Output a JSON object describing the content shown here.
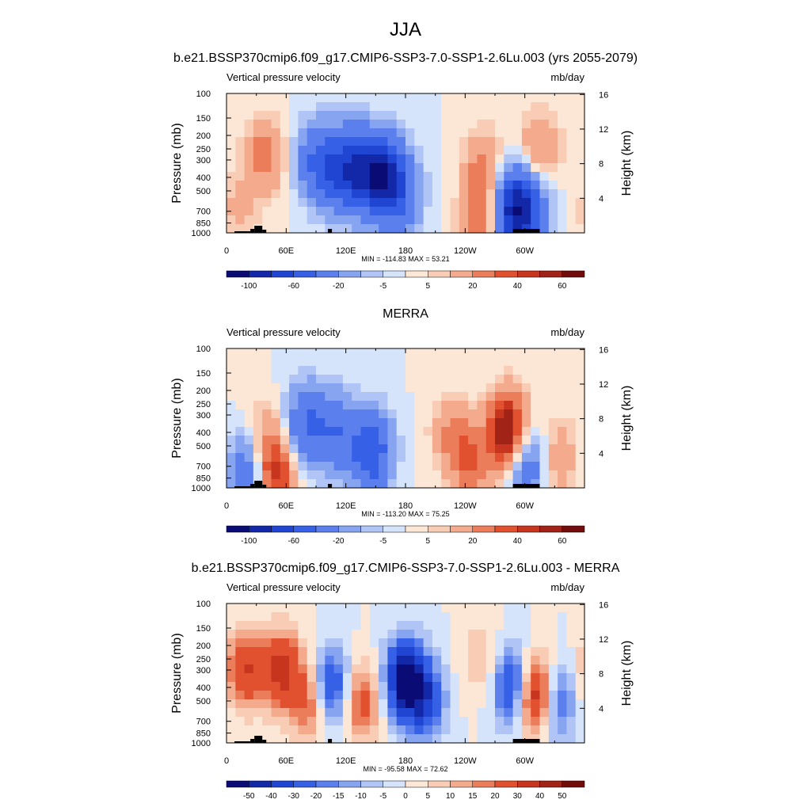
{
  "figure": {
    "title": "JJA"
  },
  "colors": {
    "colorbar_1": [
      "#0b0b75",
      "#1228a8",
      "#1f45d2",
      "#3660e6",
      "#5b80ee",
      "#87a4f1",
      "#b0c4f5",
      "#d5e4fb",
      "#fce6d6",
      "#f9cdb5",
      "#f4aa8c",
      "#ec7d5a",
      "#e2512f",
      "#c8351f",
      "#a12216",
      "#720c0b"
    ],
    "colorbar_3": [
      "#0b0b75",
      "#1228a8",
      "#1f45d2",
      "#3660e6",
      "#5b80ee",
      "#87a4f1",
      "#b0c4f5",
      "#d5e4fb",
      "#fce6d6",
      "#f9cdb5",
      "#f4aa8c",
      "#ec7d5a",
      "#e2512f",
      "#c8351f",
      "#a12216",
      "#720c0b"
    ],
    "topography": "#000000"
  },
  "chart_data": [
    {
      "type": "heatmap",
      "title": "b.e21.BSSP370cmip6.f09_g17.CMIP6-SSP3-7.0-SSP1-2.6Lu.003 (yrs 2055-2079)",
      "left_label": "Vertical pressure velocity",
      "right_label": "mb/day",
      "ylabel": "Pressure (mb)",
      "ylabel_right": "Height (km)",
      "x_ticks": [
        "0",
        "60E",
        "120E",
        "180",
        "120W",
        "60W"
      ],
      "y_ticks": [
        "100",
        "150",
        "200",
        "250",
        "300",
        "400",
        "500",
        "700",
        "850",
        "1000"
      ],
      "y_right_ticks": [
        "16",
        "12",
        "8",
        "4"
      ],
      "min_max": "MIN = -114.83  MAX =  53.21",
      "colorbar_labels": [
        "-100",
        "-60",
        "-20",
        "-5",
        "5",
        "20",
        "40",
        "60"
      ],
      "features": [
        {
          "lon": 38,
          "p": 280,
          "value": 26
        },
        {
          "lon": 12,
          "p": 700,
          "value": 12
        },
        {
          "lon": 88,
          "p": 300,
          "value": -25
        },
        {
          "lon": 105,
          "p": 350,
          "value": -45
        },
        {
          "lon": 130,
          "p": 350,
          "value": -65
        },
        {
          "lon": 155,
          "p": 400,
          "value": -85
        },
        {
          "lon": 175,
          "p": 500,
          "value": -40
        },
        {
          "lon": 258,
          "p": 350,
          "value": 24
        },
        {
          "lon": 256,
          "p": 850,
          "value": 30
        },
        {
          "lon": 288,
          "p": 700,
          "value": -80
        },
        {
          "lon": 315,
          "p": 250,
          "value": 22
        },
        {
          "lon": 305,
          "p": 700,
          "value": -40
        }
      ]
    },
    {
      "type": "heatmap",
      "title": "MERRA",
      "left_label": "Vertical pressure velocity",
      "right_label": "mb/day",
      "ylabel": "Pressure (mb)",
      "ylabel_right": "Height (km)",
      "x_ticks": [
        "0",
        "60E",
        "120E",
        "180",
        "120W",
        "60W"
      ],
      "y_ticks": [
        "100",
        "150",
        "200",
        "250",
        "300",
        "400",
        "500",
        "700",
        "850",
        "1000"
      ],
      "y_right_ticks": [
        "16",
        "12",
        "8",
        "4"
      ],
      "min_max": "MIN = -113.20  MAX =  75.25",
      "colorbar_labels": [
        "-100",
        "-60",
        "-20",
        "-5",
        "5",
        "20",
        "40",
        "60"
      ],
      "features": [
        {
          "lon": 35,
          "p": 500,
          "value": 25
        },
        {
          "lon": 48,
          "p": 800,
          "value": 45
        },
        {
          "lon": 25,
          "p": 700,
          "value": -45
        },
        {
          "lon": 80,
          "p": 350,
          "value": -40
        },
        {
          "lon": 110,
          "p": 400,
          "value": -35
        },
        {
          "lon": 145,
          "p": 550,
          "value": -60
        },
        {
          "lon": 225,
          "p": 400,
          "value": 18
        },
        {
          "lon": 245,
          "p": 650,
          "value": 30
        },
        {
          "lon": 283,
          "p": 400,
          "value": 70
        },
        {
          "lon": 300,
          "p": 650,
          "value": -40
        },
        {
          "lon": 335,
          "p": 600,
          "value": 18
        }
      ]
    },
    {
      "type": "heatmap",
      "title": "b.e21.BSSP370cmip6.f09_g17.CMIP6-SSP3-7.0-SSP1-2.6Lu.003 - MERRA",
      "left_label": "Vertical pressure velocity",
      "right_label": "mb/day",
      "ylabel": "Pressure (mb)",
      "ylabel_right": "Height (km)",
      "x_ticks": [
        "0",
        "60E",
        "120E",
        "180",
        "120W",
        "60W"
      ],
      "y_ticks": [
        "100",
        "150",
        "200",
        "250",
        "300",
        "400",
        "500",
        "700",
        "850",
        "1000"
      ],
      "y_right_ticks": [
        "16",
        "12",
        "8",
        "4"
      ],
      "min_max": "MIN = -95.58  MAX =  72.62",
      "colorbar_labels": [
        "-50",
        "-40",
        "-30",
        "-20",
        "-15",
        "-10",
        "-5",
        "0",
        "5",
        "10",
        "15",
        "20",
        "30",
        "40",
        "50"
      ],
      "features": [
        {
          "lon": 18,
          "p": 300,
          "value": 30
        },
        {
          "lon": 55,
          "p": 300,
          "value": 35
        },
        {
          "lon": 85,
          "p": 500,
          "value": 25
        },
        {
          "lon": 105,
          "p": 400,
          "value": -35
        },
        {
          "lon": 135,
          "p": 500,
          "value": 25
        },
        {
          "lon": 180,
          "p": 350,
          "value": -55
        },
        {
          "lon": 200,
          "p": 500,
          "value": -30
        },
        {
          "lon": 255,
          "p": 250,
          "value": 10
        },
        {
          "lon": 290,
          "p": 400,
          "value": -40
        },
        {
          "lon": 310,
          "p": 450,
          "value": 55
        },
        {
          "lon": 330,
          "p": 500,
          "value": -30
        }
      ]
    }
  ]
}
